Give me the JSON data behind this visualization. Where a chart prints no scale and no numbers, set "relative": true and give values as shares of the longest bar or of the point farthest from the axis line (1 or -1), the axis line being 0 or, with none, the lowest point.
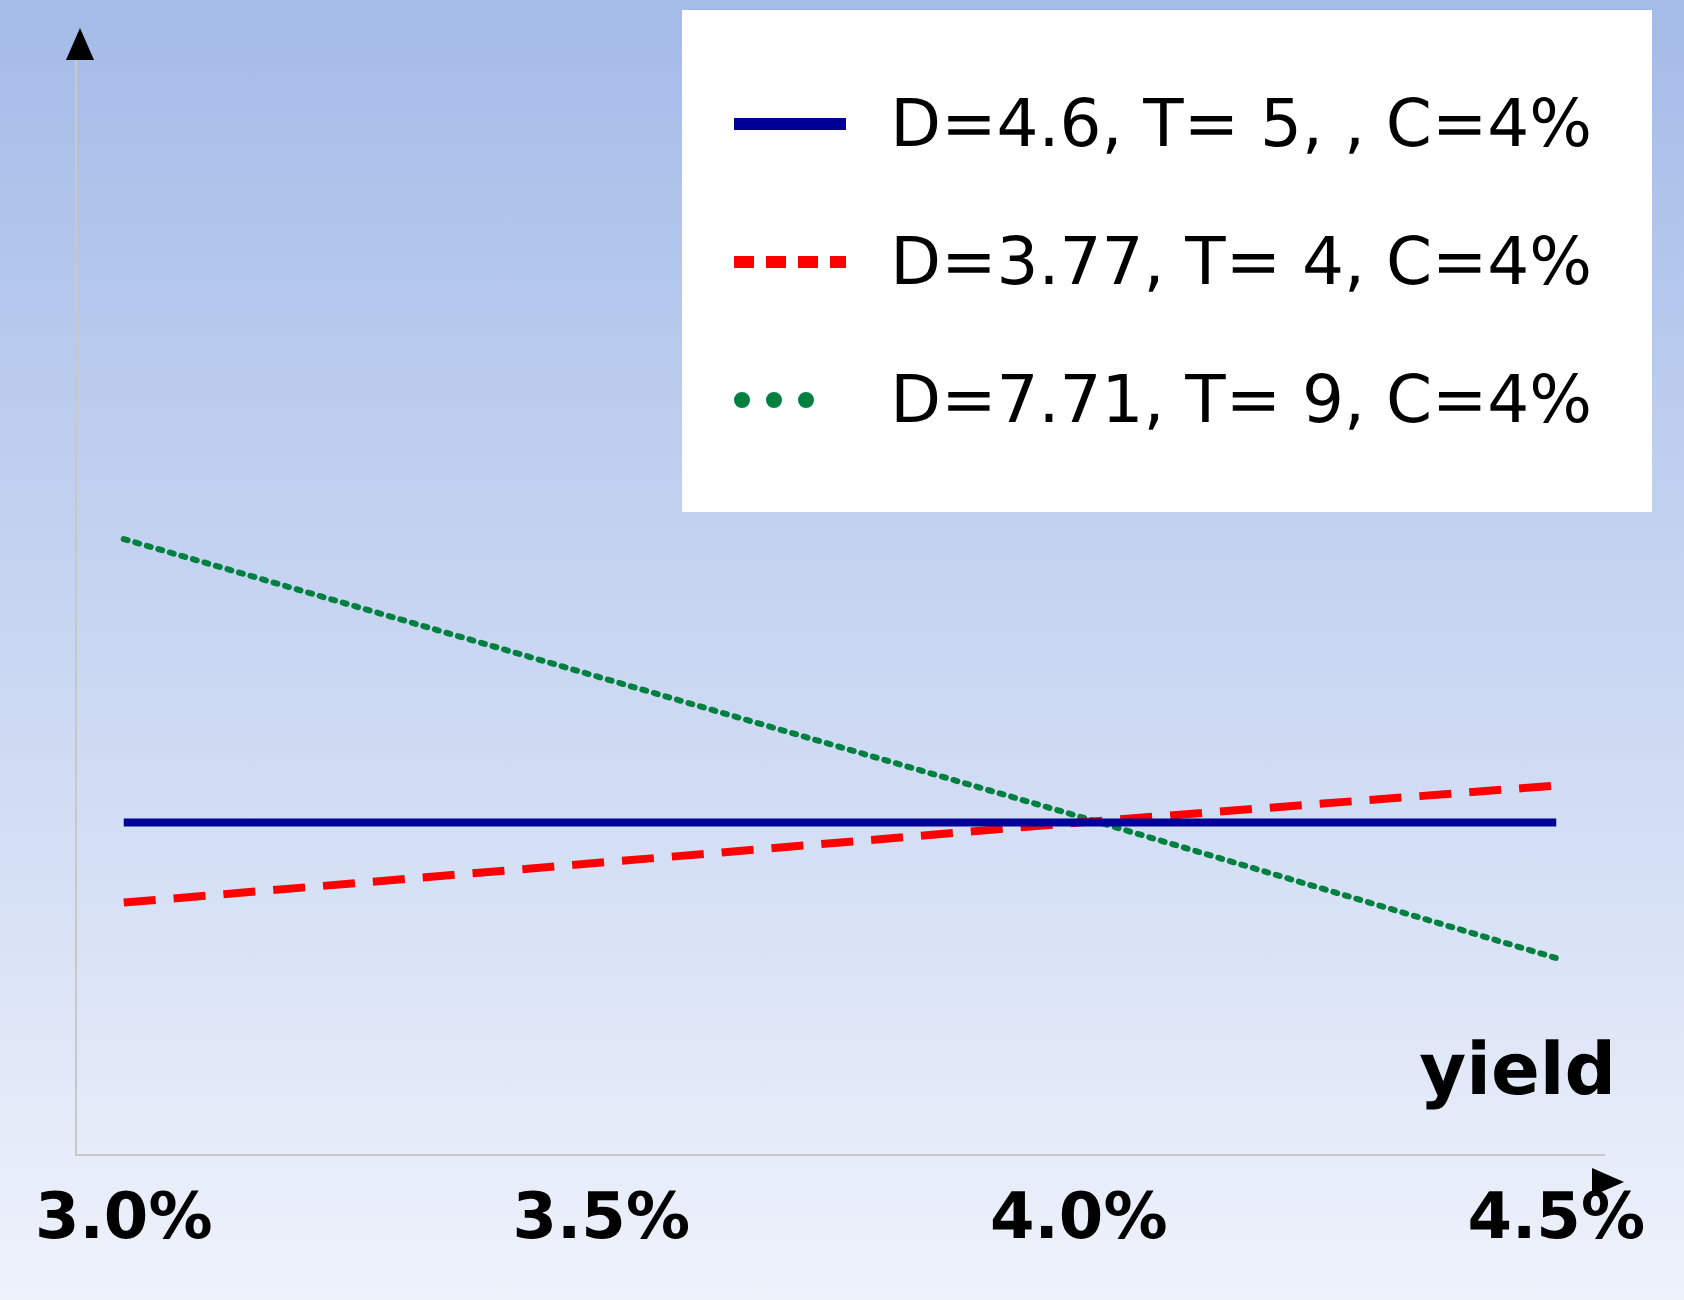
{
  "chart_data": {
    "type": "line",
    "xlabel": "yield",
    "relative": true,
    "x": [
      3.0,
      4.0,
      4.5
    ],
    "xlim": [
      2.95,
      4.55
    ],
    "xticks": [
      {
        "value": 3.0,
        "label": "3.0%"
      },
      {
        "value": 3.5,
        "label": "3.5%"
      },
      {
        "value": 4.0,
        "label": "4.0%"
      },
      {
        "value": 4.5,
        "label": "4.5%"
      }
    ],
    "series": [
      {
        "name": "D=4.6, T= 5, , C=4%",
        "color": "#000099",
        "values": [
          0.54,
          0.54,
          0.54
        ],
        "line_style": "solid"
      },
      {
        "name": "D=3.77, T= 4, C=4%",
        "color": "#ff0000",
        "values": [
          0.41,
          0.54,
          0.6
        ],
        "line_style": "dashed"
      },
      {
        "name": "D=7.71, T= 9, C=4%",
        "color": "#008040",
        "values": [
          1,
          0.55,
          0.32
        ],
        "line_style": "dotted"
      }
    ],
    "legend": "top right",
    "grid": false,
    "marker": "none"
  }
}
